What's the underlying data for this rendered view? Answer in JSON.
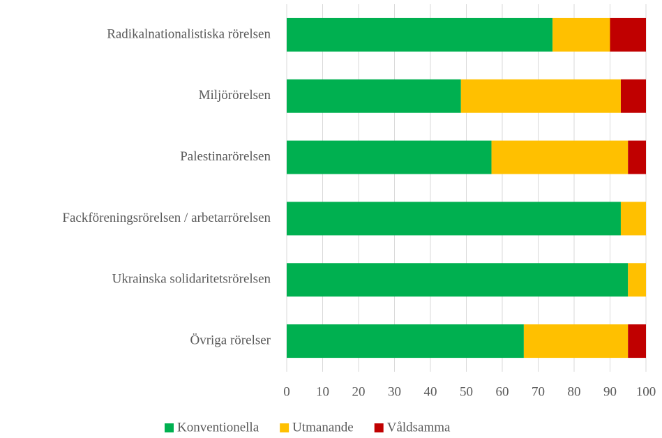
{
  "chart_data": {
    "type": "stacked_barh",
    "categories": [
      "Radikalnationalistiska rörelsen",
      "Miljörörelsen",
      "Palestinarörelsen",
      "Fackföreningsrörelsen / arbetarrörelsen",
      "Ukrainska solidaritetsrörelsen",
      "Övriga rörelser"
    ],
    "series": [
      {
        "name": "Konventionella",
        "color": "#00b050",
        "values": [
          74,
          48.5,
          57,
          93,
          95,
          66
        ]
      },
      {
        "name": "Utmanande",
        "color": "#ffc000",
        "values": [
          16,
          44.5,
          38,
          7,
          5,
          29
        ]
      },
      {
        "name": "Våldsamma",
        "color": "#c00000",
        "values": [
          10,
          7,
          5,
          0,
          0,
          5
        ]
      }
    ],
    "xlim": [
      0,
      100
    ],
    "xticks": [
      0,
      10,
      20,
      30,
      40,
      50,
      60,
      70,
      80,
      90,
      100
    ],
    "grid": true,
    "legend": "bottom"
  }
}
